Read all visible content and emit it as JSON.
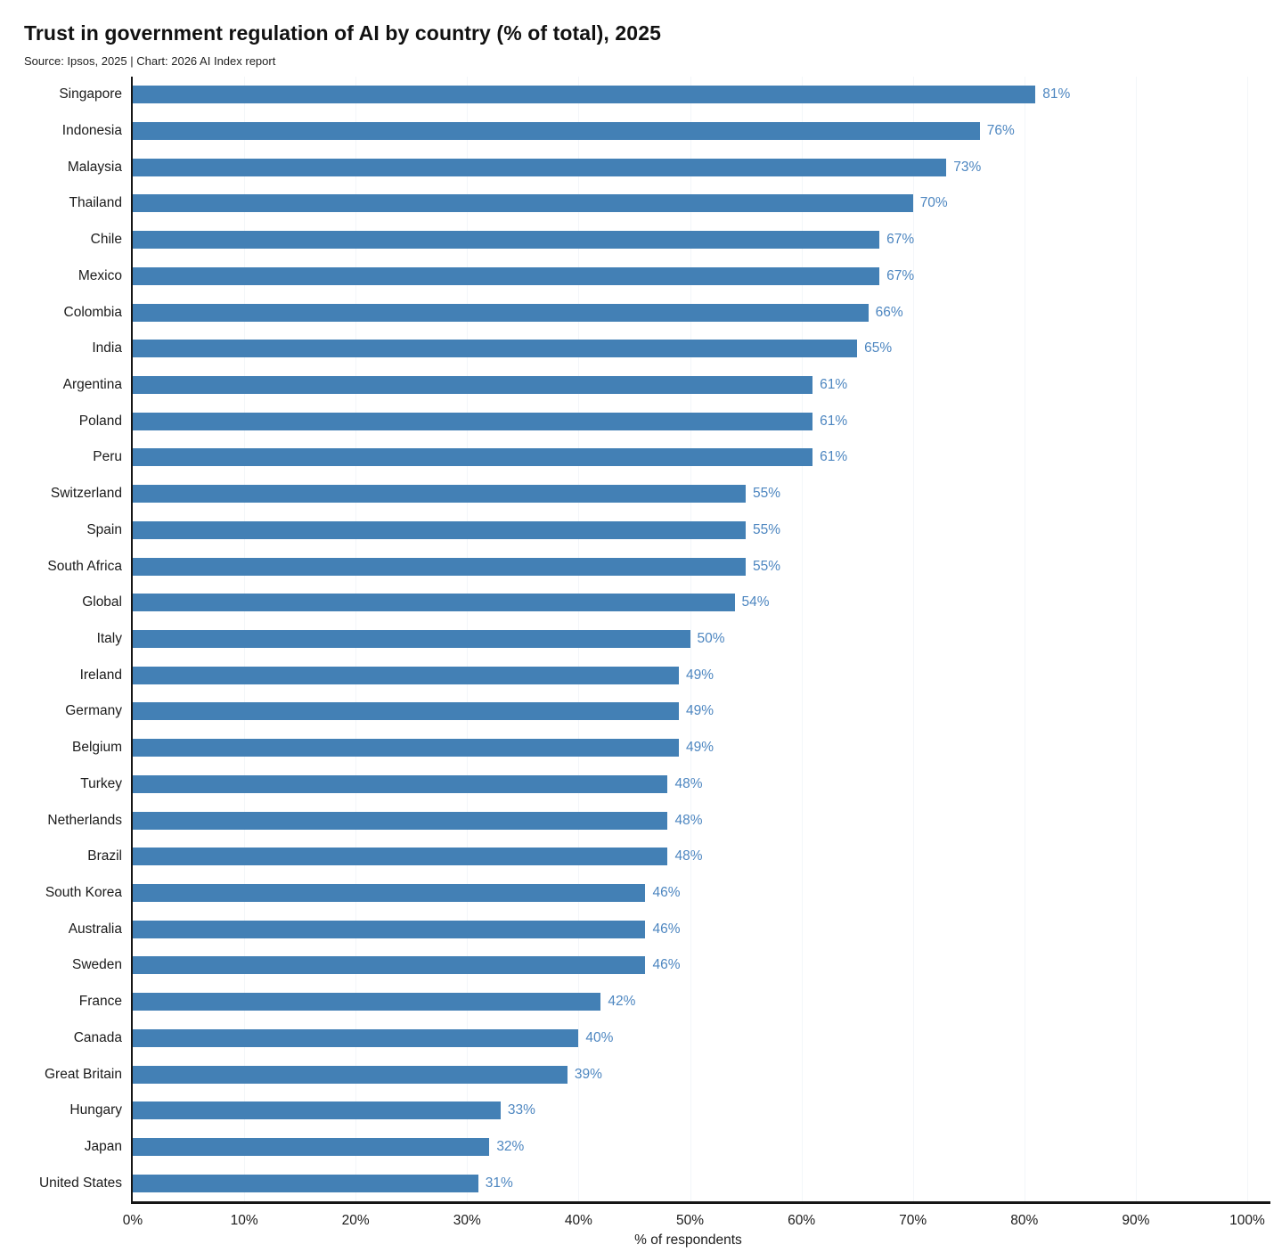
{
  "header": {
    "title": "Trust in government regulation of AI by country (% of total), 2025",
    "subtitle": "Source: Ipsos, 2025 | Chart: 2026 AI Index report"
  },
  "chart_data": {
    "type": "bar",
    "orientation": "horizontal",
    "title": "Trust in government regulation of AI by country (% of total), 2025",
    "source": "Source: Ipsos, 2025 | Chart: 2026 AI Index report",
    "xlabel": "% of respondents",
    "xlim": [
      0,
      100
    ],
    "x_tick_labels": [
      "0%",
      "10%",
      "20%",
      "30%",
      "40%",
      "50%",
      "60%",
      "70%",
      "80%",
      "90%",
      "100%"
    ],
    "grid": "faint vertical gridlines at 10% intervals",
    "legend_position": "none",
    "categories": [
      "Singapore",
      "Indonesia",
      "Malaysia",
      "Thailand",
      "Chile",
      "Mexico",
      "Colombia",
      "India",
      "Argentina",
      "Poland",
      "Peru",
      "Switzerland",
      "Spain",
      "South Africa",
      "Global",
      "Italy",
      "Ireland",
      "Germany",
      "Belgium",
      "Turkey",
      "Netherlands",
      "Brazil",
      "South Korea",
      "Australia",
      "Sweden",
      "France",
      "Canada",
      "Great Britain",
      "Hungary",
      "Japan",
      "United States"
    ],
    "values": [
      81,
      76,
      73,
      70,
      67,
      67,
      66,
      65,
      61,
      61,
      61,
      55,
      55,
      55,
      54,
      50,
      49,
      49,
      49,
      48,
      48,
      48,
      46,
      46,
      46,
      42,
      40,
      39,
      33,
      32,
      31
    ],
    "value_labels": [
      "81%",
      "76%",
      "73%",
      "70%",
      "67%",
      "67%",
      "66%",
      "65%",
      "61%",
      "61%",
      "61%",
      "55%",
      "55%",
      "55%",
      "54%",
      "50%",
      "49%",
      "49%",
      "49%",
      "48%",
      "48%",
      "48%",
      "46%",
      "46%",
      "46%",
      "42%",
      "40%",
      "39%",
      "33%",
      "32%",
      "31%"
    ],
    "colors": {
      "bar": "#4380B5",
      "value_label": "#4D86C0",
      "axis_line": "#161616",
      "text": "#1b1b1b",
      "gridline": "#f3f6f9"
    }
  }
}
